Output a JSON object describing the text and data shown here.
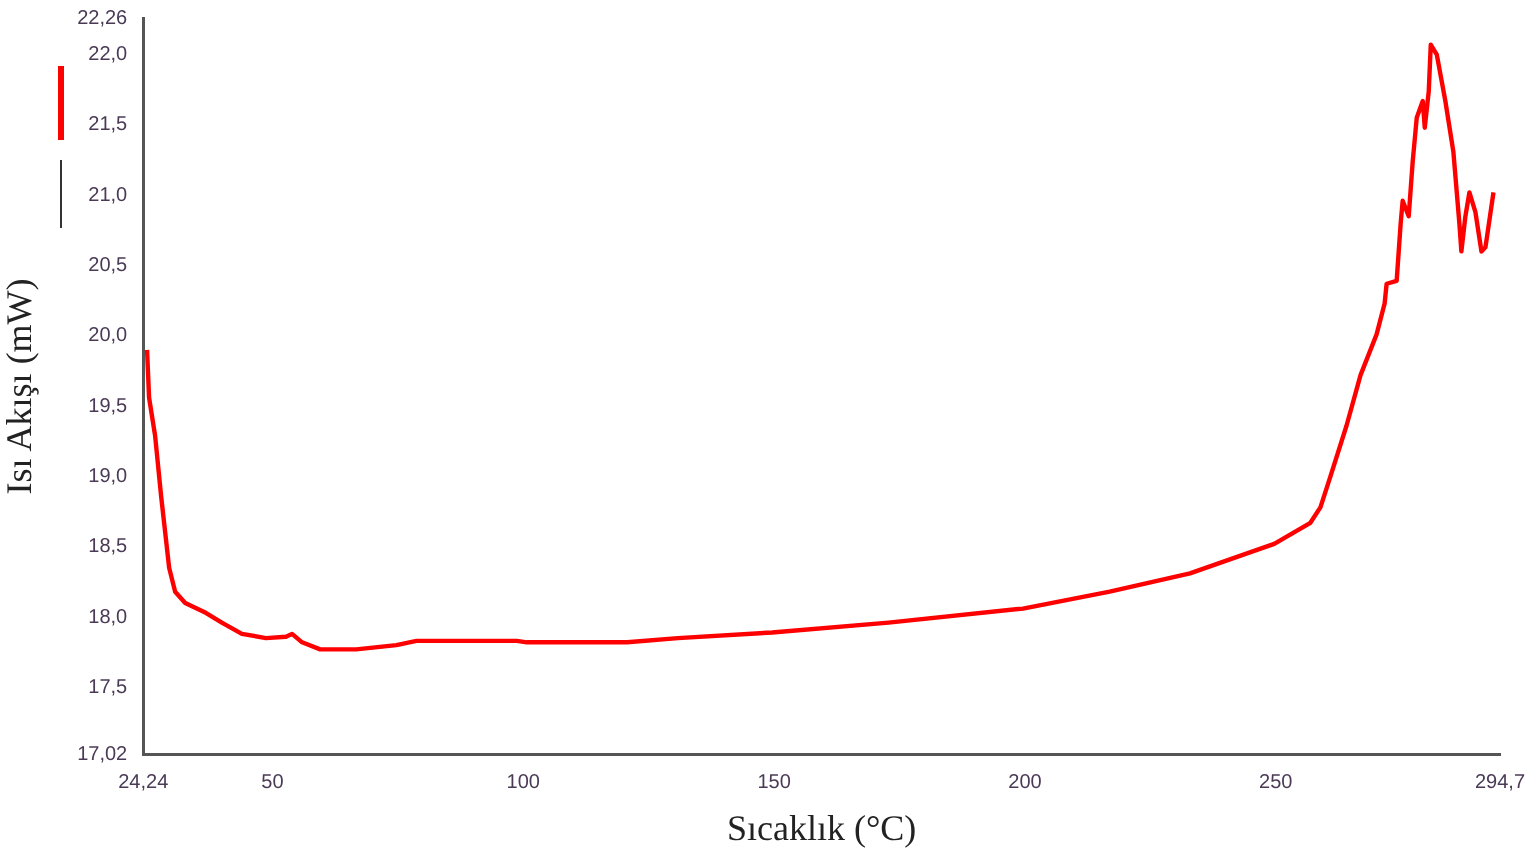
{
  "chart_data": {
    "type": "line",
    "xlabel": "Sıcaklık (°C)",
    "ylabel": "Isı Akışı (mW)",
    "xlim": [
      24.24,
      294.7
    ],
    "ylim": [
      17.02,
      22.26
    ],
    "xticks": [
      {
        "value": 24.24,
        "label": "24,24"
      },
      50,
      100,
      150,
      200,
      250,
      {
        "value": 294.7,
        "label": "294,7"
      }
    ],
    "yticks": [
      {
        "value": 17.02,
        "label": "17,02"
      },
      {
        "value": 17.5,
        "label": "17,5"
      },
      {
        "value": 18,
        "label": "18,0"
      },
      {
        "value": 18.5,
        "label": "18,5"
      },
      {
        "value": 19,
        "label": "19,0"
      },
      {
        "value": 19.5,
        "label": "19,5"
      },
      {
        "value": 20,
        "label": "20,0"
      },
      {
        "value": 20.5,
        "label": "20,5"
      },
      {
        "value": 21,
        "label": "21,0"
      },
      {
        "value": 21.5,
        "label": "21,5"
      },
      {
        "value": 22,
        "label": "22,0"
      },
      {
        "value": 22.26,
        "label": "22,26"
      }
    ],
    "grid": false,
    "legend": false,
    "marker": "none",
    "line_style": "solid",
    "series": [
      {
        "color": "#ff0000",
        "x": [
          25.0,
          25.4,
          26.6,
          27.8,
          29.4,
          30.6,
          32.6,
          36.7,
          39.9,
          43.9,
          48.7,
          52.7,
          53.9,
          55.9,
          59.5,
          66.7,
          74.7,
          78.7,
          98.7,
          100.7,
          120.7,
          130.8,
          149.6,
          172.8,
          199.6,
          216.9,
          232.9,
          249.7,
          256.9,
          258.9,
          260.9,
          264.1,
          266.9,
          270.1,
          271.7,
          272.1,
          274.1,
          274.9,
          275.3,
          276.5,
          277.3,
          278.1,
          279.3,
          279.7,
          280.5,
          280.9,
          282.1,
          283.8,
          285.4,
          286.6,
          287.0,
          287.8,
          288.6,
          289.8,
          291.0,
          291.8,
          293.4
        ],
        "values": [
          19.9,
          19.56,
          19.29,
          18.86,
          18.35,
          18.18,
          18.1,
          18.03,
          17.96,
          17.88,
          17.85,
          17.86,
          17.88,
          17.82,
          17.77,
          17.77,
          17.8,
          17.83,
          17.83,
          17.82,
          17.82,
          17.85,
          17.89,
          17.96,
          18.06,
          18.18,
          18.31,
          18.52,
          18.67,
          18.78,
          19.0,
          19.36,
          19.72,
          20.01,
          20.23,
          20.37,
          20.39,
          20.8,
          20.96,
          20.85,
          21.24,
          21.55,
          21.67,
          21.48,
          21.74,
          22.07,
          22.0,
          21.67,
          21.31,
          20.8,
          20.6,
          20.85,
          21.02,
          20.88,
          20.6,
          20.63,
          21.02
        ]
      }
    ]
  }
}
